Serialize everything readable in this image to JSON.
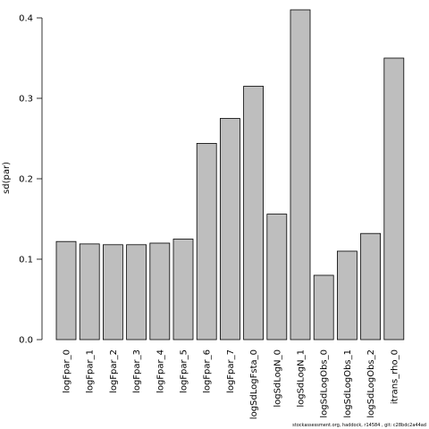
{
  "chart_data": {
    "type": "bar",
    "categories": [
      "logFpar_0",
      "logFpar_1",
      "logFpar_2",
      "logFpar_3",
      "logFpar_4",
      "logFpar_5",
      "logFpar_6",
      "logFpar_7",
      "logSdLogFsta_0",
      "logSdLogN_0",
      "logSdLogN_1",
      "logSdLogObs_0",
      "logSdLogObs_1",
      "logSdLogObs_2",
      "itrans_rho_0"
    ],
    "values": [
      0.122,
      0.119,
      0.118,
      0.118,
      0.12,
      0.125,
      0.244,
      0.275,
      0.315,
      0.156,
      0.41,
      0.08,
      0.11,
      0.132,
      0.35
    ],
    "title": "",
    "xlabel": "",
    "ylabel": "sd(par)",
    "ylim": [
      0,
      0.4
    ],
    "yticks": [
      "0.0",
      "0.1",
      "0.2",
      "0.3",
      "0.4"
    ],
    "bar_color": "#bebebe",
    "grid": false
  },
  "footer": "stockassessment.org, haddock, r14584 , git: c28bdc2a44ad"
}
